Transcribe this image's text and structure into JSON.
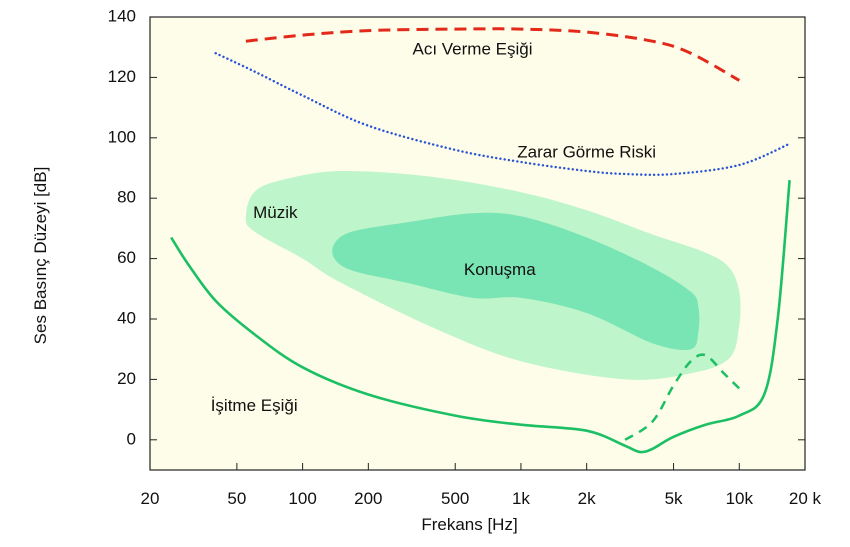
{
  "chart_data": {
    "type": "line",
    "title": "",
    "xlabel": "Frekans [Hz]",
    "ylabel": "Ses Basınç Düzeyi [dB]",
    "x_scale": "log",
    "xlim": [
      20,
      20000
    ],
    "ylim": [
      -10,
      140
    ],
    "grid": false,
    "x_ticks": [
      {
        "value": 20,
        "label": "20"
      },
      {
        "value": 50,
        "label": "50"
      },
      {
        "value": 100,
        "label": "100"
      },
      {
        "value": 200,
        "label": "200"
      },
      {
        "value": 500,
        "label": "500"
      },
      {
        "value": 1000,
        "label": "1k"
      },
      {
        "value": 2000,
        "label": "2k"
      },
      {
        "value": 5000,
        "label": "5k"
      },
      {
        "value": 10000,
        "label": "10k"
      },
      {
        "value": 20000,
        "label": "20 k"
      }
    ],
    "y_ticks": [
      0,
      20,
      40,
      60,
      80,
      100,
      120,
      140
    ],
    "colors": {
      "background": "#fefdea",
      "pain": "#e32a1a",
      "damage": "#2a54d6",
      "threshold": "#1cbf63",
      "music_region": "#bff5ca",
      "speech_region": "#79e4b4"
    },
    "series": [
      {
        "label": "Acı Verme Eşiği",
        "style": "dashed",
        "x": [
          55,
          100,
          200,
          500,
          1000,
          2000,
          4000,
          6000,
          10000
        ],
        "y": [
          132,
          134,
          135.5,
          136,
          136,
          135,
          132,
          128,
          119
        ]
      },
      {
        "label": "Zarar Görme Riski",
        "style": "dotted",
        "x": [
          40,
          60,
          100,
          200,
          500,
          1000,
          2000,
          3000,
          5000,
          10000,
          17000
        ],
        "y": [
          128,
          122,
          114,
          104,
          96,
          92,
          89,
          88,
          88,
          91,
          98
        ]
      },
      {
        "label": "İşitme Eşiği",
        "style": "solid",
        "x": [
          25,
          30,
          40,
          60,
          100,
          200,
          500,
          1000,
          2000,
          3000,
          3500,
          4000,
          5000,
          7000,
          10000,
          13000,
          15000,
          17000
        ],
        "y": [
          67,
          58,
          46,
          35,
          24,
          15,
          8,
          5,
          3,
          -2,
          -4,
          -3,
          1,
          5,
          8,
          15,
          40,
          86
        ]
      },
      {
        "label": "",
        "style": "dashed",
        "x": [
          3000,
          4000,
          5000,
          6000,
          7000,
          8500,
          10000
        ],
        "y": [
          0,
          6,
          18,
          26,
          28,
          22,
          17
        ]
      }
    ],
    "regions": [
      {
        "label": "Müzik",
        "x": [
          55,
          60,
          80,
          150,
          400,
          1000,
          2000,
          4000,
          7000,
          9000,
          10000,
          10000,
          9000,
          6000,
          3000,
          1000,
          400,
          150,
          100,
          60
        ],
        "y": [
          74,
          82,
          86,
          89,
          87,
          82,
          76,
          68,
          62,
          57,
          49,
          38,
          27,
          22,
          20,
          26,
          37,
          52,
          60,
          69
        ]
      },
      {
        "label": "Konuşma",
        "x": [
          140,
          170,
          300,
          600,
          1000,
          2000,
          4000,
          6000,
          6500,
          6500,
          6000,
          4000,
          2000,
          1000,
          600,
          300,
          170,
          140
        ],
        "y": [
          65,
          69,
          72,
          75,
          74,
          67,
          57,
          49,
          44,
          36,
          30,
          32,
          42,
          47,
          47,
          52,
          56,
          60
        ]
      }
    ],
    "annotations": [
      {
        "text": "Acı Verme Eşiği",
        "x": 600,
        "y": 129
      },
      {
        "text": "Zarar Görme Riski",
        "x": 2000,
        "y": 95
      },
      {
        "text": "Müzik",
        "x": 75,
        "y": 75
      },
      {
        "text": "Konuşma",
        "x": 800,
        "y": 56
      },
      {
        "text": "İşitme Eşiği",
        "x": 60,
        "y": 11
      }
    ]
  }
}
